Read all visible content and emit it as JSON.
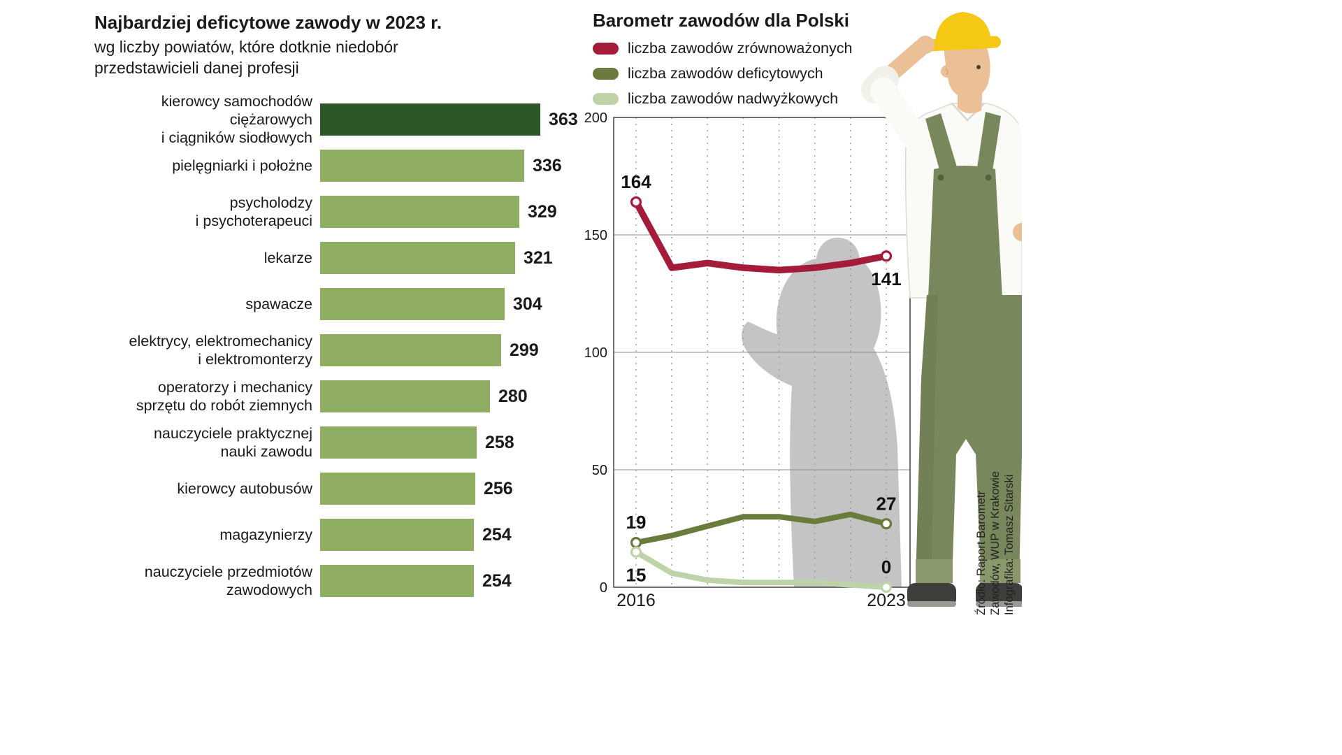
{
  "page": {
    "background": "#ffffff"
  },
  "left_chart": {
    "title": "Najbardziej deficytowe zawody w 2023 r.",
    "subtitle": "wg liczby powiatów, które dotknie niedobór\nprzedstawicieli danej profesji"
  },
  "right_chart": {
    "title": "Barometr zawodów dla Polski"
  },
  "source": {
    "lines": [
      "Źródło: Raport Barometr",
      "Zawodów, WUP w Krakowie",
      "Infografika: Tomasz Sitarski"
    ]
  },
  "chart_data": [
    {
      "type": "bar",
      "orientation": "horizontal",
      "title": "Najbardziej deficytowe zawody w 2023 r.",
      "subtitle": "wg liczby powiatów, które dotknie niedobór przedstawicieli danej profesji",
      "categories": [
        "kierowcy samochodów\nciężarowych\ni ciągników siodłowych",
        "pielęgniarki i położne",
        "psycholodzy\ni psychoterapeuci",
        "lekarze",
        "spawacze",
        "elektrycy, elektromechanicy\ni elektromonterzy",
        "operatorzy i mechanicy\nsprzętu do robót ziemnych",
        "nauczyciele praktycznej\nnauki zawodu",
        "kierowcy autobusów",
        "magazynierzy",
        "nauczyciele przedmiotów\nzawodowych"
      ],
      "values": [
        363,
        336,
        329,
        321,
        304,
        299,
        280,
        258,
        256,
        254,
        254
      ],
      "colors": [
        "#2c5829",
        "#8fae63",
        "#8fae63",
        "#8fae63",
        "#8fae63",
        "#8fae63",
        "#8fae63",
        "#8fae63",
        "#8fae63",
        "#8fae63",
        "#8fae63"
      ],
      "xlim": [
        0,
        363
      ]
    },
    {
      "type": "line",
      "title": "Barometr zawodów dla Polski",
      "x": [
        2016,
        2017,
        2018,
        2019,
        2020,
        2021,
        2022,
        2023
      ],
      "series": [
        {
          "name": "liczba zawodów zrównoważonych",
          "color": "#a51c3b",
          "stroke_width": 9.5,
          "values": [
            164,
            136,
            138,
            136,
            135,
            136,
            138,
            141
          ]
        },
        {
          "name": "liczba zawodów deficytowych",
          "color": "#6b7b3e",
          "stroke_width": 8,
          "values": [
            19,
            22,
            26,
            30,
            30,
            28,
            31,
            27
          ]
        },
        {
          "name": "liczba zawodów nadwyżkowych",
          "color": "#bfd3a8",
          "stroke_width": 8,
          "values": [
            15,
            6,
            3,
            2,
            2,
            2,
            1,
            0
          ]
        }
      ],
      "ylim": [
        0,
        200
      ],
      "yticks": [
        0,
        50,
        100,
        150,
        200
      ],
      "xtick_labels": [
        {
          "x": 2016,
          "label": "2016"
        },
        {
          "x": 2023,
          "label": "2023"
        }
      ],
      "grid": {
        "horizontal": "solid",
        "vertical": "dashed"
      },
      "legend_position": "top-left",
      "annotations": [
        {
          "text": "164",
          "x": 2016,
          "value": 164,
          "placement": "above"
        },
        {
          "text": "141",
          "x": 2023,
          "value": 141,
          "placement": "below"
        },
        {
          "text": "19",
          "x": 2016,
          "value": 19,
          "placement": "above"
        },
        {
          "text": "15",
          "x": 2016,
          "value": 15,
          "placement": "below"
        },
        {
          "text": "27",
          "x": 2023,
          "value": 27,
          "placement": "above"
        },
        {
          "text": "0",
          "x": 2023,
          "value": 0,
          "placement": "above"
        }
      ]
    }
  ]
}
